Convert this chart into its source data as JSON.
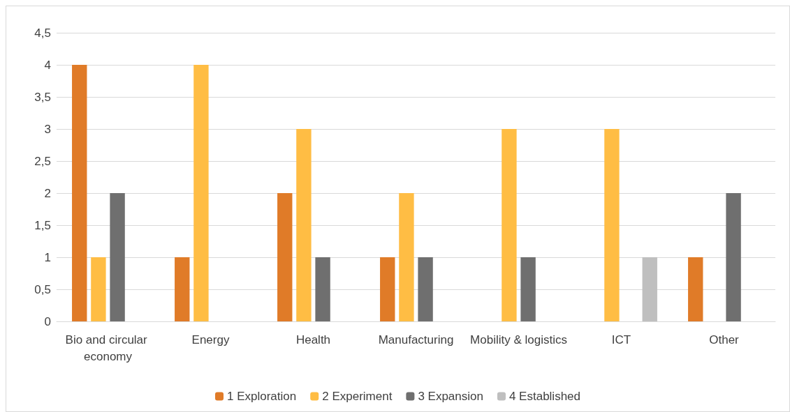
{
  "chart_data": {
    "type": "bar",
    "categories": [
      "Bio and circular economy",
      "Energy",
      "Health",
      "Manufacturing",
      "Mobility & logistics",
      "ICT",
      "Other"
    ],
    "series": [
      {
        "name": "1 Exploration",
        "color": "#e07b28",
        "values": [
          4,
          1,
          2,
          1,
          0,
          0,
          1
        ]
      },
      {
        "name": "2 Experiment",
        "color": "#ffbd44",
        "values": [
          1,
          4,
          3,
          2,
          3,
          3,
          0
        ]
      },
      {
        "name": "3 Expansion",
        "color": "#6f6f6f",
        "values": [
          2,
          0,
          1,
          1,
          1,
          0,
          2
        ]
      },
      {
        "name": "4 Established",
        "color": "#bfbfbf",
        "values": [
          0,
          0,
          0,
          0,
          0,
          1,
          0
        ]
      }
    ],
    "ylim": [
      0,
      4.5
    ],
    "yticks": [
      0,
      {
        "value": 0.5,
        "label": "0,5"
      },
      1,
      {
        "value": 1.5,
        "label": "1,5"
      },
      2,
      {
        "value": 2.5,
        "label": "2,5"
      },
      3,
      {
        "value": 3.5,
        "label": "3,5"
      },
      4,
      {
        "value": 4.5,
        "label": "4,5"
      }
    ],
    "grid": "y",
    "legend": "bottom"
  }
}
